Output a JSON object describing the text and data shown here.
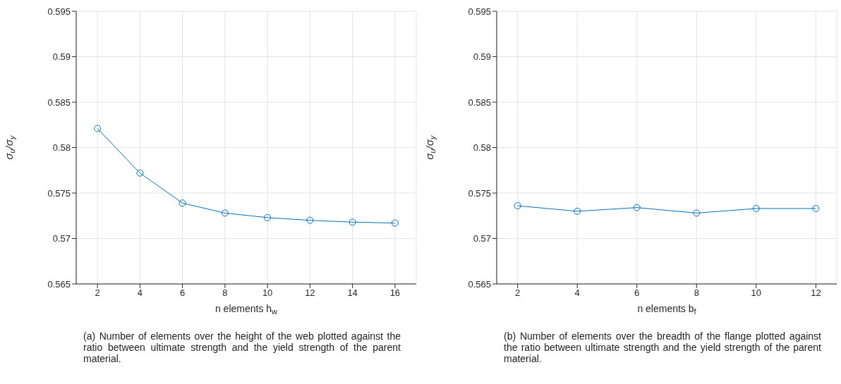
{
  "chart_data": [
    {
      "type": "line",
      "xlabel": "n elements h$_{w}$",
      "ylabel": "σ$_{u}$/σ$_{y}$",
      "x": [
        2,
        4,
        6,
        8,
        10,
        12,
        14,
        16
      ],
      "series": [
        {
          "color": "#0072bd",
          "values": [
            0.5821,
            0.5772,
            0.5739,
            0.5728,
            0.5723,
            0.572,
            0.5718,
            0.5717
          ]
        }
      ],
      "xlim": [
        1,
        17
      ],
      "xticks": [
        2,
        4,
        6,
        8,
        10,
        12,
        14,
        16
      ],
      "ylim": [
        0.565,
        0.595
      ],
      "yticks": [
        0.565,
        0.57,
        0.575,
        0.58,
        0.585,
        0.59,
        0.595
      ],
      "grid": true,
      "marker": "circle",
      "line_style": "solid",
      "annotations": [
        "(a) Number of elements over the height of the web plotted against the ratio between ultimate strength and the yield strength of the parent material."
      ]
    },
    {
      "type": "line",
      "xlabel": "n elements b$_{f}$",
      "ylabel": "σ$_{u}$/σ$_{y}$",
      "x": [
        2,
        4,
        6,
        8,
        10,
        12
      ],
      "series": [
        {
          "color": "#0072bd",
          "values": [
            0.5736,
            0.573,
            0.5734,
            0.5728,
            0.5733,
            0.5733
          ]
        }
      ],
      "xlim": [
        1.3,
        12.7
      ],
      "xticks": [
        2,
        4,
        6,
        8,
        10,
        12
      ],
      "ylim": [
        0.565,
        0.595
      ],
      "yticks": [
        0.565,
        0.57,
        0.575,
        0.58,
        0.585,
        0.59,
        0.595
      ],
      "grid": true,
      "marker": "circle",
      "line_style": "solid",
      "annotations": [
        "(b) Number of elements over the breadth of the flange plotted against the ratio between ultimate strength and the yield strength of the parent material."
      ]
    }
  ]
}
